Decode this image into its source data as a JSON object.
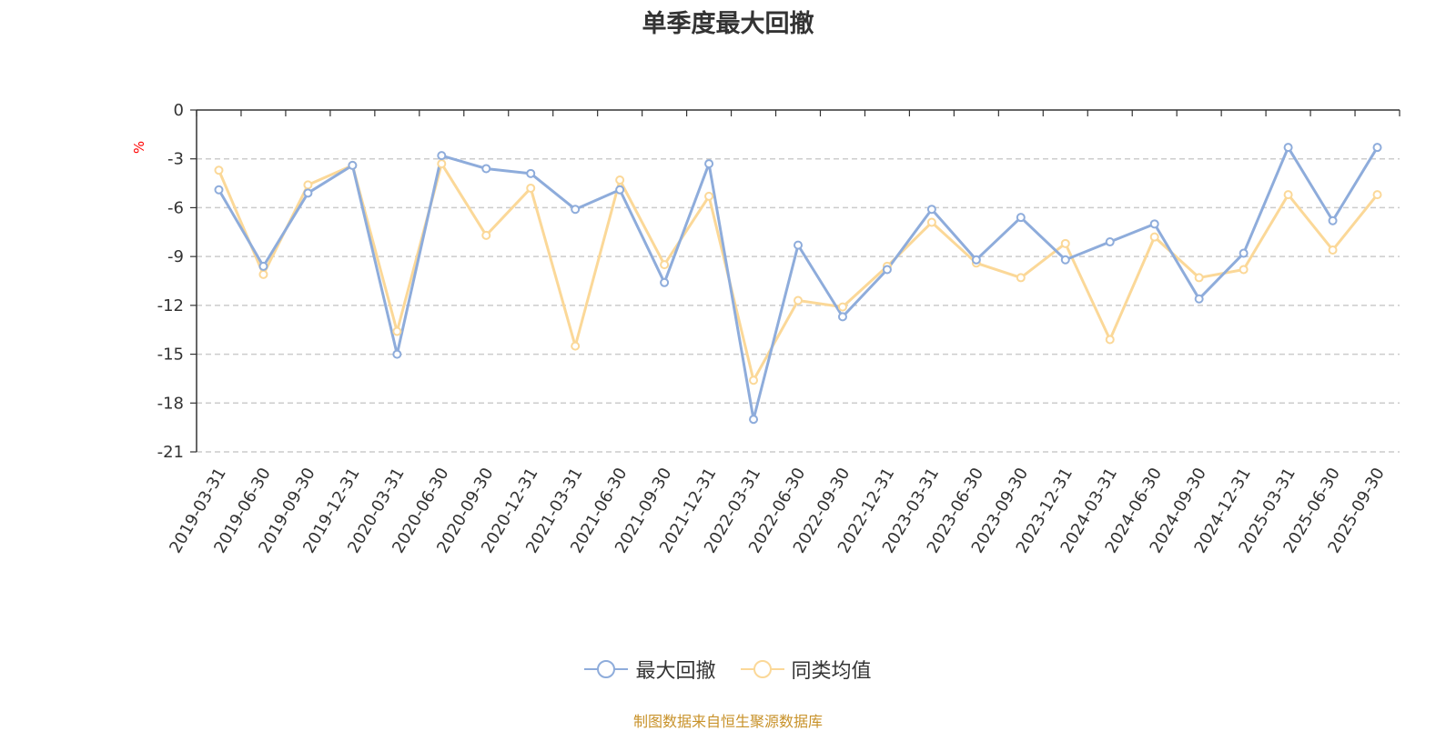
{
  "chart_data": {
    "type": "line",
    "title": "单季度最大回撤",
    "ylabel": "%",
    "xlabel": "",
    "ylim": [
      -21,
      0
    ],
    "yticks": [
      0,
      -3,
      -6,
      -9,
      -12,
      -15,
      -18,
      -21
    ],
    "grid": true,
    "legend_position": "bottom-center",
    "categories": [
      "2019-03-31",
      "2019-06-30",
      "2019-09-30",
      "2019-12-31",
      "2020-03-31",
      "2020-06-30",
      "2020-09-30",
      "2020-12-31",
      "2021-03-31",
      "2021-06-30",
      "2021-09-30",
      "2021-12-31",
      "2022-03-31",
      "2022-06-30",
      "2022-09-30",
      "2022-12-31",
      "2023-03-31",
      "2023-06-30",
      "2023-09-30",
      "2023-12-31",
      "2024-03-31",
      "2024-06-30",
      "2024-09-30",
      "2024-12-31",
      "2025-03-31",
      "2025-06-30",
      "2025-09-30"
    ],
    "series": [
      {
        "name": "最大回撤",
        "color": "#8eacdb",
        "values": [
          -4.9,
          -9.6,
          -5.1,
          -3.4,
          -15.0,
          -2.8,
          -3.6,
          -3.9,
          -6.1,
          -4.9,
          -10.6,
          -3.3,
          -19.0,
          -8.3,
          -12.7,
          -9.8,
          -6.1,
          -9.2,
          -6.6,
          -9.2,
          -8.1,
          -7.0,
          -11.6,
          -8.8,
          -2.3,
          -6.8,
          -2.3
        ]
      },
      {
        "name": "同类均值",
        "color": "#fbd898",
        "values": [
          -3.7,
          -10.1,
          -4.6,
          -3.4,
          -13.6,
          -3.3,
          -7.7,
          -4.8,
          -14.5,
          -4.3,
          -9.5,
          -5.3,
          -16.6,
          -11.7,
          -12.1,
          -9.6,
          -6.9,
          -9.4,
          -10.3,
          -8.2,
          -14.1,
          -7.8,
          -10.3,
          -9.8,
          -5.2,
          -8.6,
          -5.2
        ]
      }
    ]
  },
  "source_text": "制图数据来自恒生聚源数据库"
}
